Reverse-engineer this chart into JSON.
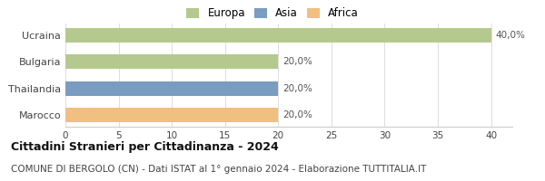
{
  "categories": [
    "Ucraina",
    "Bulgaria",
    "Thailandia",
    "Marocco"
  ],
  "values": [
    40.0,
    20.0,
    20.0,
    20.0
  ],
  "bar_colors": [
    "#b5c98e",
    "#b5c98e",
    "#7a9cc0",
    "#f0c080"
  ],
  "labels": [
    "40,0%",
    "20,0%",
    "20,0%",
    "20,0%"
  ],
  "xlim": [
    0,
    42
  ],
  "xticks": [
    0,
    5,
    10,
    15,
    20,
    25,
    30,
    35,
    40
  ],
  "legend": [
    {
      "label": "Europa",
      "color": "#b5c98e"
    },
    {
      "label": "Asia",
      "color": "#7a9cc0"
    },
    {
      "label": "Africa",
      "color": "#f0c080"
    }
  ],
  "title": "Cittadini Stranieri per Cittadinanza - 2024",
  "subtitle": "COMUNE DI BERGOLO (CN) - Dati ISTAT al 1° gennaio 2024 - Elaborazione TUTTITALIA.IT",
  "background_color": "#ffffff",
  "bar_height": 0.55,
  "label_fontsize": 7.5,
  "tick_fontsize": 7.5,
  "ytick_fontsize": 8,
  "title_fontsize": 9,
  "subtitle_fontsize": 7.5,
  "legend_fontsize": 8.5
}
